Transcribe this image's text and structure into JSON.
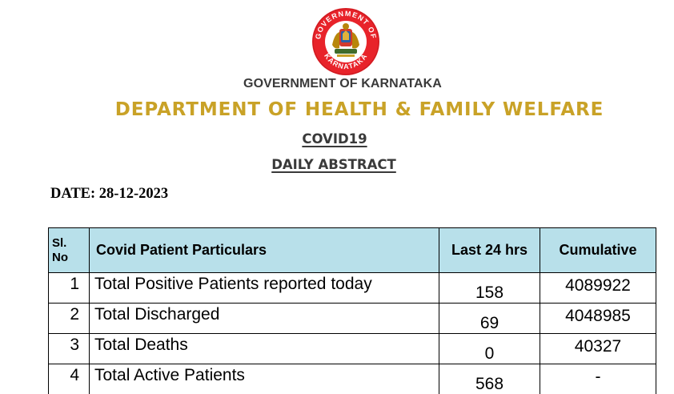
{
  "seal": {
    "icon": "karnataka-government-seal-icon",
    "text_top": "GOVERNMENT OF",
    "text_bottom": "KARNATAKA",
    "colors": {
      "ring": "#e8232a",
      "inner": "#ffffff",
      "emblem": "#b8860b"
    }
  },
  "header": {
    "government": "GOVERNMENT OF KARNATAKA",
    "department": "DEPARTMENT OF HEALTH & FAMILY WELFARE",
    "covid": "COVID19",
    "abstract": "DAILY ABSTRACT",
    "date": "DATE: 28-12-2023"
  },
  "table": {
    "columns": {
      "sl_line1": "Sl.",
      "sl_line2": "No",
      "particulars": "Covid Patient Particulars",
      "last24": "Last 24 hrs",
      "cumulative": "Cumulative"
    },
    "rows": [
      {
        "sl": "1",
        "particular": "Total Positive Patients reported today",
        "last24": "158",
        "cumulative": "4089922"
      },
      {
        "sl": "2",
        "particular": "Total Discharged",
        "last24": "69",
        "cumulative": "4048985"
      },
      {
        "sl": "3",
        "particular": "Total Deaths",
        "last24": "0",
        "cumulative": "40327"
      },
      {
        "sl": "4",
        "particular": "Total Active Patients",
        "last24": "568",
        "cumulative": "-"
      }
    ]
  },
  "colors": {
    "department_gold": "#c9a227",
    "header_gray": "#3a3a3a",
    "table_header_bg": "#b8e0ea"
  }
}
